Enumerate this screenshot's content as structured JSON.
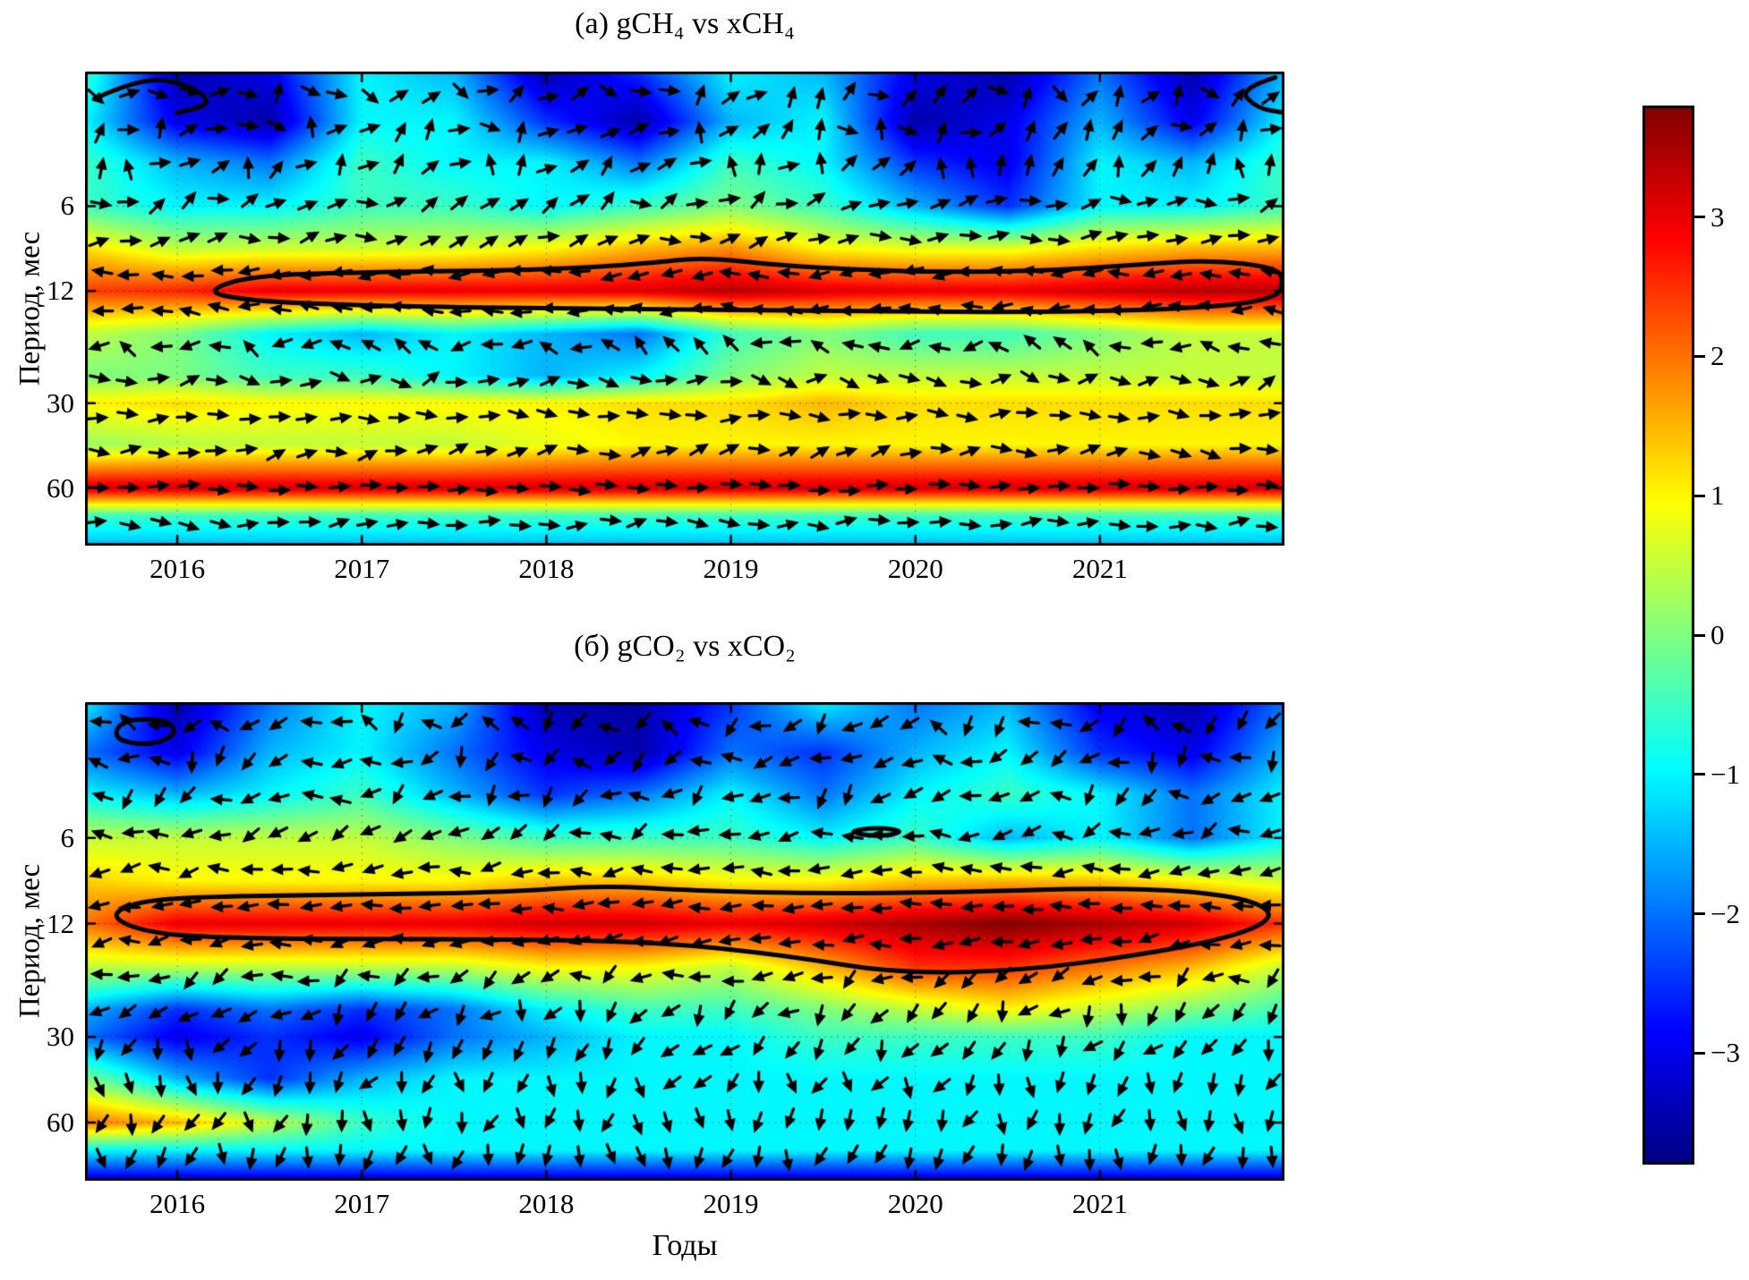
{
  "figure": {
    "xlabel": "Годы"
  },
  "colorbar": {
    "colormap": "jet",
    "vmin": -3.8,
    "vmax": 3.8,
    "ticks": [
      3,
      2,
      1,
      0,
      -1,
      -2,
      -3
    ],
    "tick_labels": [
      "3",
      "2",
      "1",
      "0",
      "−1",
      "−2",
      "−3"
    ]
  },
  "chart_data": [
    {
      "type": "heatmap",
      "title": "(а) gCH₄ vs xCH₄",
      "ylabel": "Период, мес",
      "x_range": [
        2015.5,
        2022.0
      ],
      "x_ticks": [
        "2016",
        "2017",
        "2018",
        "2019",
        "2020",
        "2021"
      ],
      "x_tick_values": [
        2016,
        2017,
        2018,
        2019,
        2020,
        2021
      ],
      "y_scale": "log",
      "y_range": [
        2,
        96
      ],
      "y_ticks": [
        "6",
        "12",
        "30",
        "60"
      ],
      "y_tick_values": [
        6,
        12,
        30,
        60
      ],
      "grid_times": [
        2015.5,
        2016,
        2016.5,
        2017,
        2017.5,
        2018,
        2018.5,
        2019,
        2019.5,
        2020,
        2020.5,
        2021,
        2021.5,
        2022
      ],
      "grid_periods": [
        2,
        3,
        4.2,
        6,
        8.5,
        12,
        17,
        24,
        30,
        42,
        60,
        75,
        96
      ],
      "values": [
        [
          -0.5,
          -3.5,
          -3.0,
          -1.0,
          -1.5,
          -3.5,
          -2.5,
          -1.0,
          -1.5,
          -3.0,
          -3.5,
          -2.0,
          -3.5,
          -1.5
        ],
        [
          -1.0,
          -3.0,
          -3.5,
          -1.0,
          -1.0,
          -2.5,
          -3.5,
          -1.5,
          -1.0,
          -3.5,
          -3.0,
          -1.5,
          -3.0,
          -1.0
        ],
        [
          -0.5,
          -1.5,
          -2.0,
          -0.5,
          -1.0,
          -1.0,
          -2.0,
          -0.5,
          -1.0,
          -2.5,
          -3.0,
          -1.0,
          -1.5,
          -0.5
        ],
        [
          -0.5,
          -1.0,
          -1.0,
          -0.5,
          -0.5,
          -1.0,
          -0.5,
          0.0,
          -0.5,
          -1.5,
          -2.5,
          -1.0,
          -1.0,
          -0.5
        ],
        [
          1.2,
          0.5,
          0.6,
          0.6,
          0.7,
          1.0,
          1.5,
          1.8,
          1.0,
          0.8,
          0.8,
          1.2,
          1.5,
          1.5
        ],
        [
          2.4,
          2.6,
          3.0,
          3.0,
          3.0,
          3.0,
          3.1,
          3.4,
          3.1,
          3.0,
          3.0,
          3.2,
          3.4,
          3.4
        ],
        [
          0.5,
          0.0,
          -1.0,
          -1.5,
          -1.0,
          -1.5,
          -2.0,
          -0.5,
          0.0,
          -0.5,
          -0.5,
          0.0,
          0.5,
          0.5
        ],
        [
          0.0,
          0.0,
          -0.5,
          -0.5,
          -1.0,
          -1.5,
          -1.0,
          0.0,
          0.5,
          0.5,
          0.5,
          0.5,
          0.5,
          0.5
        ],
        [
          1.0,
          1.2,
          1.0,
          1.0,
          1.0,
          1.0,
          1.2,
          1.2,
          1.5,
          1.2,
          1.2,
          1.2,
          1.2,
          1.2
        ],
        [
          0.2,
          0.4,
          0.5,
          0.5,
          0.5,
          0.8,
          1.0,
          1.0,
          1.0,
          1.0,
          1.0,
          1.0,
          1.0,
          1.0
        ],
        [
          3.2,
          3.2,
          3.2,
          3.2,
          3.2,
          3.2,
          3.2,
          3.2,
          3.2,
          3.2,
          3.2,
          3.2,
          3.2,
          3.2
        ],
        [
          -0.5,
          -0.5,
          -0.5,
          -0.5,
          -0.5,
          -0.5,
          -0.5,
          -0.5,
          -0.5,
          -0.5,
          -0.5,
          -0.5,
          -0.5,
          -0.5
        ],
        [
          -1.5,
          -1.5,
          -1.5,
          -1.5,
          -1.5,
          -1.5,
          -1.5,
          -1.5,
          -1.5,
          -1.5,
          -1.5,
          -1.5,
          -1.5,
          -1.5
        ]
      ],
      "contours": [
        {
          "closed": true,
          "points": [
            [
              2016.15,
              12.0
            ],
            [
              2016.4,
              10.6
            ],
            [
              2017.0,
              10.3
            ],
            [
              2018.0,
              10.1
            ],
            [
              2018.55,
              9.6
            ],
            [
              2018.85,
              9.1
            ],
            [
              2019.3,
              9.8
            ],
            [
              2020.0,
              10.3
            ],
            [
              2020.7,
              10.2
            ],
            [
              2021.2,
              9.7
            ],
            [
              2021.6,
              9.3
            ],
            [
              2021.95,
              9.9
            ],
            [
              2022.0,
              11.0
            ],
            [
              2021.95,
              13.0
            ],
            [
              2021.4,
              14.0
            ],
            [
              2020.5,
              14.3
            ],
            [
              2019.5,
              14.1
            ],
            [
              2018.5,
              13.9
            ],
            [
              2017.5,
              13.7
            ],
            [
              2016.8,
              13.4
            ],
            [
              2016.35,
              12.9
            ]
          ]
        },
        {
          "closed": false,
          "points": [
            [
              2015.55,
              2.5
            ],
            [
              2015.8,
              2.1
            ],
            [
              2016.05,
              2.2
            ],
            [
              2016.2,
              2.6
            ],
            [
              2016.0,
              2.8
            ]
          ]
        },
        {
          "closed": false,
          "points": [
            [
              2021.95,
              2.1
            ],
            [
              2021.75,
              2.3
            ],
            [
              2021.85,
              2.7
            ],
            [
              2022.0,
              2.8
            ]
          ]
        }
      ],
      "arrows": {
        "seed": 7,
        "columns": 40,
        "rows": [
          {
            "period": 2.4,
            "base": 15,
            "jitter": 130
          },
          {
            "period": 3.2,
            "base": 35,
            "jitter": 130
          },
          {
            "period": 4.3,
            "base": 60,
            "jitter": 110
          },
          {
            "period": 5.8,
            "base": 20,
            "jitter": 70
          },
          {
            "period": 7.8,
            "base": 10,
            "jitter": 50
          },
          {
            "period": 10.4,
            "base": 183,
            "jitter": 30
          },
          {
            "period": 13.9,
            "base": 178,
            "jitter": 35
          },
          {
            "period": 18.6,
            "base": 165,
            "jitter": 85
          },
          {
            "period": 24.9,
            "base": 5,
            "jitter": 75
          },
          {
            "period": 33.3,
            "base": 0,
            "jitter": 35
          },
          {
            "period": 44.6,
            "base": 5,
            "jitter": 55
          },
          {
            "period": 59.7,
            "base": 0,
            "jitter": 15
          },
          {
            "period": 79.9,
            "base": 0,
            "jitter": 45
          }
        ]
      }
    },
    {
      "type": "heatmap",
      "title": "(б) gCO₂ vs xCO₂",
      "ylabel": "Период, мес",
      "x_range": [
        2015.5,
        2022.0
      ],
      "x_ticks": [
        "2016",
        "2017",
        "2018",
        "2019",
        "2020",
        "2021"
      ],
      "x_tick_values": [
        2016,
        2017,
        2018,
        2019,
        2020,
        2021
      ],
      "y_scale": "log",
      "y_range": [
        2,
        96
      ],
      "y_ticks": [
        "6",
        "12",
        "30",
        "60"
      ],
      "y_tick_values": [
        6,
        12,
        30,
        60
      ],
      "grid_times": [
        2015.5,
        2016,
        2016.5,
        2017,
        2017.5,
        2018,
        2018.5,
        2019,
        2019.5,
        2020,
        2020.5,
        2021,
        2021.5,
        2022
      ],
      "grid_periods": [
        2,
        3,
        4.2,
        6,
        8.5,
        12,
        17,
        24,
        30,
        42,
        60,
        75,
        96
      ],
      "values": [
        [
          -1.0,
          -3.5,
          -2.0,
          -1.0,
          -1.5,
          -3.5,
          -3.5,
          -2.5,
          -1.0,
          -2.0,
          -1.5,
          -3.0,
          -3.5,
          -2.0
        ],
        [
          -2.0,
          -3.0,
          -1.5,
          -1.0,
          -2.0,
          -3.0,
          -3.5,
          -2.0,
          -2.5,
          -1.5,
          -1.0,
          -2.5,
          -3.0,
          -1.5
        ],
        [
          -1.0,
          -1.5,
          -1.0,
          -0.5,
          -1.5,
          -2.5,
          -2.0,
          -1.0,
          -2.0,
          -1.0,
          -0.5,
          -1.0,
          -2.0,
          -1.0
        ],
        [
          0.5,
          0.5,
          0.5,
          0.5,
          0.0,
          -0.5,
          -0.5,
          -0.5,
          -1.0,
          -0.5,
          -1.5,
          -1.0,
          -2.0,
          -1.0
        ],
        [
          1.3,
          1.0,
          1.0,
          1.0,
          1.0,
          1.4,
          1.4,
          1.0,
          1.0,
          1.4,
          1.5,
          1.4,
          1.0,
          0.6
        ],
        [
          2.0,
          3.0,
          3.0,
          3.0,
          3.0,
          3.2,
          3.2,
          3.0,
          3.2,
          3.5,
          3.8,
          3.5,
          3.2,
          2.5
        ],
        [
          0.5,
          0.5,
          0.5,
          0.5,
          0.5,
          1.0,
          1.0,
          0.5,
          1.5,
          2.5,
          2.5,
          2.0,
          1.5,
          0.5
        ],
        [
          -1.5,
          -2.5,
          -2.0,
          -2.5,
          -2.0,
          -1.0,
          -0.5,
          -0.5,
          0.0,
          0.5,
          1.0,
          0.5,
          0.0,
          -0.5
        ],
        [
          -2.0,
          -3.0,
          -2.5,
          -3.0,
          -2.0,
          -1.5,
          -1.0,
          -1.0,
          -0.5,
          -0.5,
          -0.5,
          -0.5,
          -1.0,
          -1.0
        ],
        [
          0.0,
          -1.5,
          -2.5,
          -1.5,
          -1.0,
          -1.0,
          -1.0,
          -1.0,
          -1.0,
          -1.0,
          -1.0,
          -1.0,
          -1.0,
          -1.0
        ],
        [
          2.0,
          1.5,
          0.5,
          -0.5,
          -1.0,
          -1.0,
          -1.0,
          -1.0,
          -1.0,
          -1.0,
          -1.0,
          -1.0,
          -1.0,
          -1.0
        ],
        [
          -1.0,
          -1.0,
          -1.0,
          -1.0,
          -1.0,
          -1.0,
          -1.0,
          -1.0,
          -1.0,
          -1.0,
          -1.0,
          -1.0,
          -1.0,
          -1.0
        ],
        [
          -3.2,
          -3.2,
          -3.2,
          -3.2,
          -3.2,
          -3.2,
          -3.2,
          -3.2,
          -3.2,
          -3.2,
          -3.2,
          -3.2,
          -3.2,
          -3.2
        ]
      ],
      "contours": [
        {
          "closed": true,
          "points": [
            [
              2015.62,
              11.3
            ],
            [
              2015.8,
              9.9
            ],
            [
              2016.3,
              9.6
            ],
            [
              2017.0,
              9.5
            ],
            [
              2017.8,
              9.3
            ],
            [
              2018.3,
              8.8
            ],
            [
              2018.8,
              9.2
            ],
            [
              2019.5,
              9.4
            ],
            [
              2020.2,
              9.3
            ],
            [
              2021.0,
              9.0
            ],
            [
              2021.5,
              9.2
            ],
            [
              2021.85,
              10.0
            ],
            [
              2021.95,
              11.5
            ],
            [
              2021.7,
              13.5
            ],
            [
              2021.2,
              15.5
            ],
            [
              2020.6,
              17.5
            ],
            [
              2019.9,
              18.0
            ],
            [
              2019.3,
              15.5
            ],
            [
              2018.6,
              13.9
            ],
            [
              2017.8,
              13.6
            ],
            [
              2017.0,
              13.6
            ],
            [
              2016.3,
              13.5
            ],
            [
              2015.85,
              13.0
            ]
          ]
        },
        {
          "closed": true,
          "points": [
            [
              2015.7,
              2.3
            ],
            [
              2015.95,
              2.3
            ],
            [
              2016.0,
              2.6
            ],
            [
              2015.85,
              2.85
            ],
            [
              2015.65,
              2.7
            ]
          ]
        },
        {
          "closed": true,
          "points": [
            [
              2019.62,
              5.7
            ],
            [
              2019.8,
              5.5
            ],
            [
              2019.95,
              5.7
            ],
            [
              2019.8,
              5.95
            ]
          ]
        }
      ],
      "arrows": {
        "seed": 13,
        "columns": 40,
        "rows": [
          {
            "period": 2.4,
            "base": 195,
            "jitter": 130
          },
          {
            "period": 3.2,
            "base": 210,
            "jitter": 120
          },
          {
            "period": 4.3,
            "base": 205,
            "jitter": 100
          },
          {
            "period": 5.8,
            "base": 195,
            "jitter": 70
          },
          {
            "period": 7.8,
            "base": 186,
            "jitter": 45
          },
          {
            "period": 10.4,
            "base": 182,
            "jitter": 25
          },
          {
            "period": 13.9,
            "base": 188,
            "jitter": 40
          },
          {
            "period": 18.6,
            "base": 205,
            "jitter": 80
          },
          {
            "period": 24.9,
            "base": 235,
            "jitter": 85
          },
          {
            "period": 33.3,
            "base": 245,
            "jitter": 80
          },
          {
            "period": 44.6,
            "base": 255,
            "jitter": 85
          },
          {
            "period": 59.7,
            "base": 260,
            "jitter": 70
          },
          {
            "period": 79.9,
            "base": 265,
            "jitter": 60
          }
        ]
      }
    }
  ]
}
